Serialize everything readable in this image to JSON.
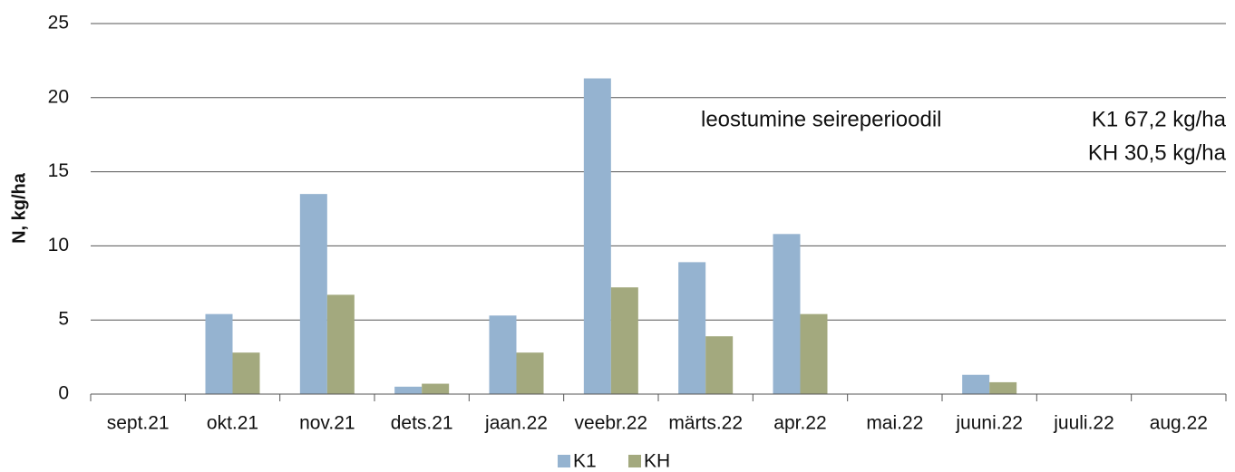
{
  "chart_data": {
    "type": "bar",
    "categories": [
      "sept.21",
      "okt.21",
      "nov.21",
      "dets.21",
      "jaan.22",
      "veebr.22",
      "märts.22",
      "apr.22",
      "mai.22",
      "juuni.22",
      "juuli.22",
      "aug.22"
    ],
    "series": [
      {
        "name": "K1",
        "color": "#95b3d0",
        "values": [
          0,
          5.4,
          13.5,
          0.5,
          5.3,
          21.3,
          8.9,
          10.8,
          0,
          1.3,
          0,
          0
        ]
      },
      {
        "name": "KH",
        "color": "#a3a97e",
        "values": [
          0,
          2.8,
          6.7,
          0.7,
          2.8,
          7.2,
          3.9,
          5.4,
          0,
          0.8,
          0,
          0
        ]
      }
    ],
    "y_label": "N, kg/ha",
    "annotations": [
      "leostumine seireperioodil",
      "K1 67,2 kg/ha",
      "KH 30,5 kg/ha"
    ],
    "ylim": [
      0,
      25
    ],
    "yticks": [
      0,
      5,
      10,
      15,
      20,
      25
    ],
    "grid": true,
    "legend": "bottom"
  }
}
